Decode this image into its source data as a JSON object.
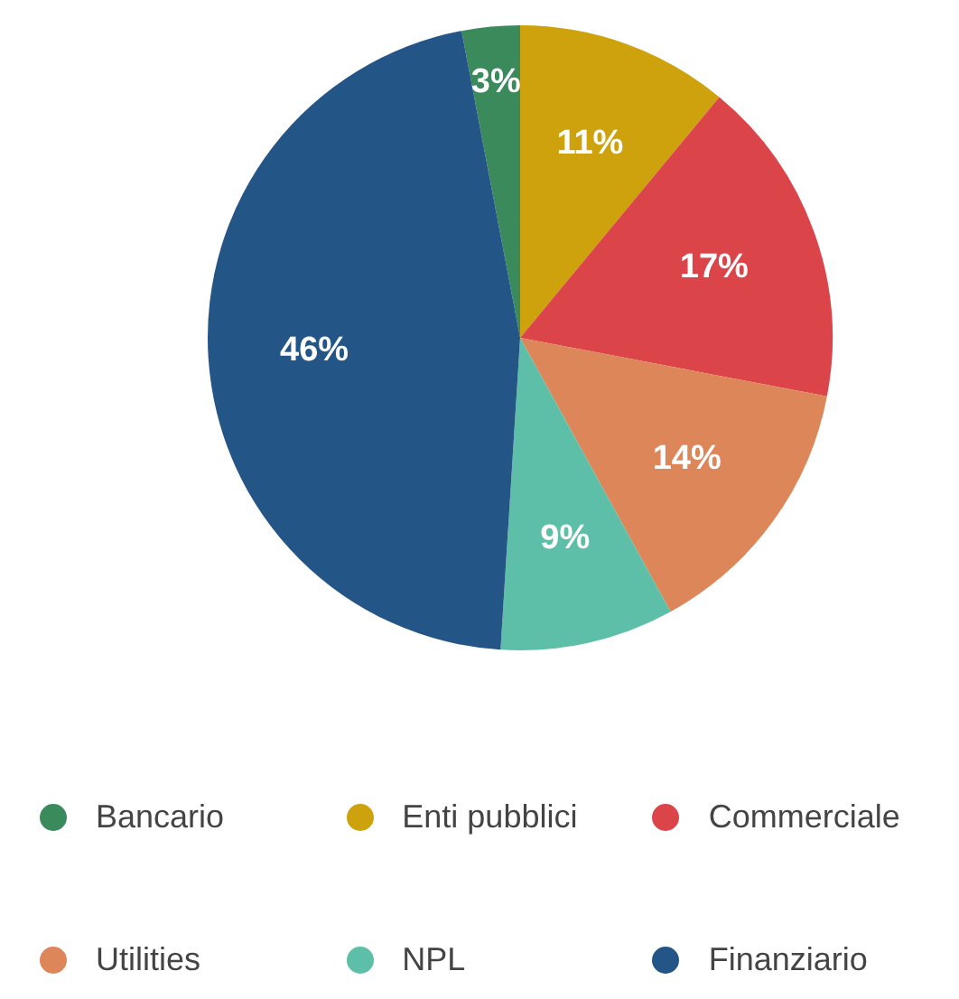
{
  "chart_data": {
    "type": "pie",
    "categories": [
      "Bancario",
      "Enti pubblici",
      "Commerciale",
      "Utilities",
      "NPL",
      "Finanziario"
    ],
    "values": [
      3,
      11,
      17,
      14,
      9,
      46
    ],
    "colors": [
      "#3b8a5c",
      "#cda20c",
      "#db4449",
      "#dc8659",
      "#5dbfa7",
      "#245587"
    ],
    "value_labels": [
      "3%",
      "11%",
      "17%",
      "14%",
      "9%",
      "46%"
    ],
    "legend": "bottom"
  }
}
